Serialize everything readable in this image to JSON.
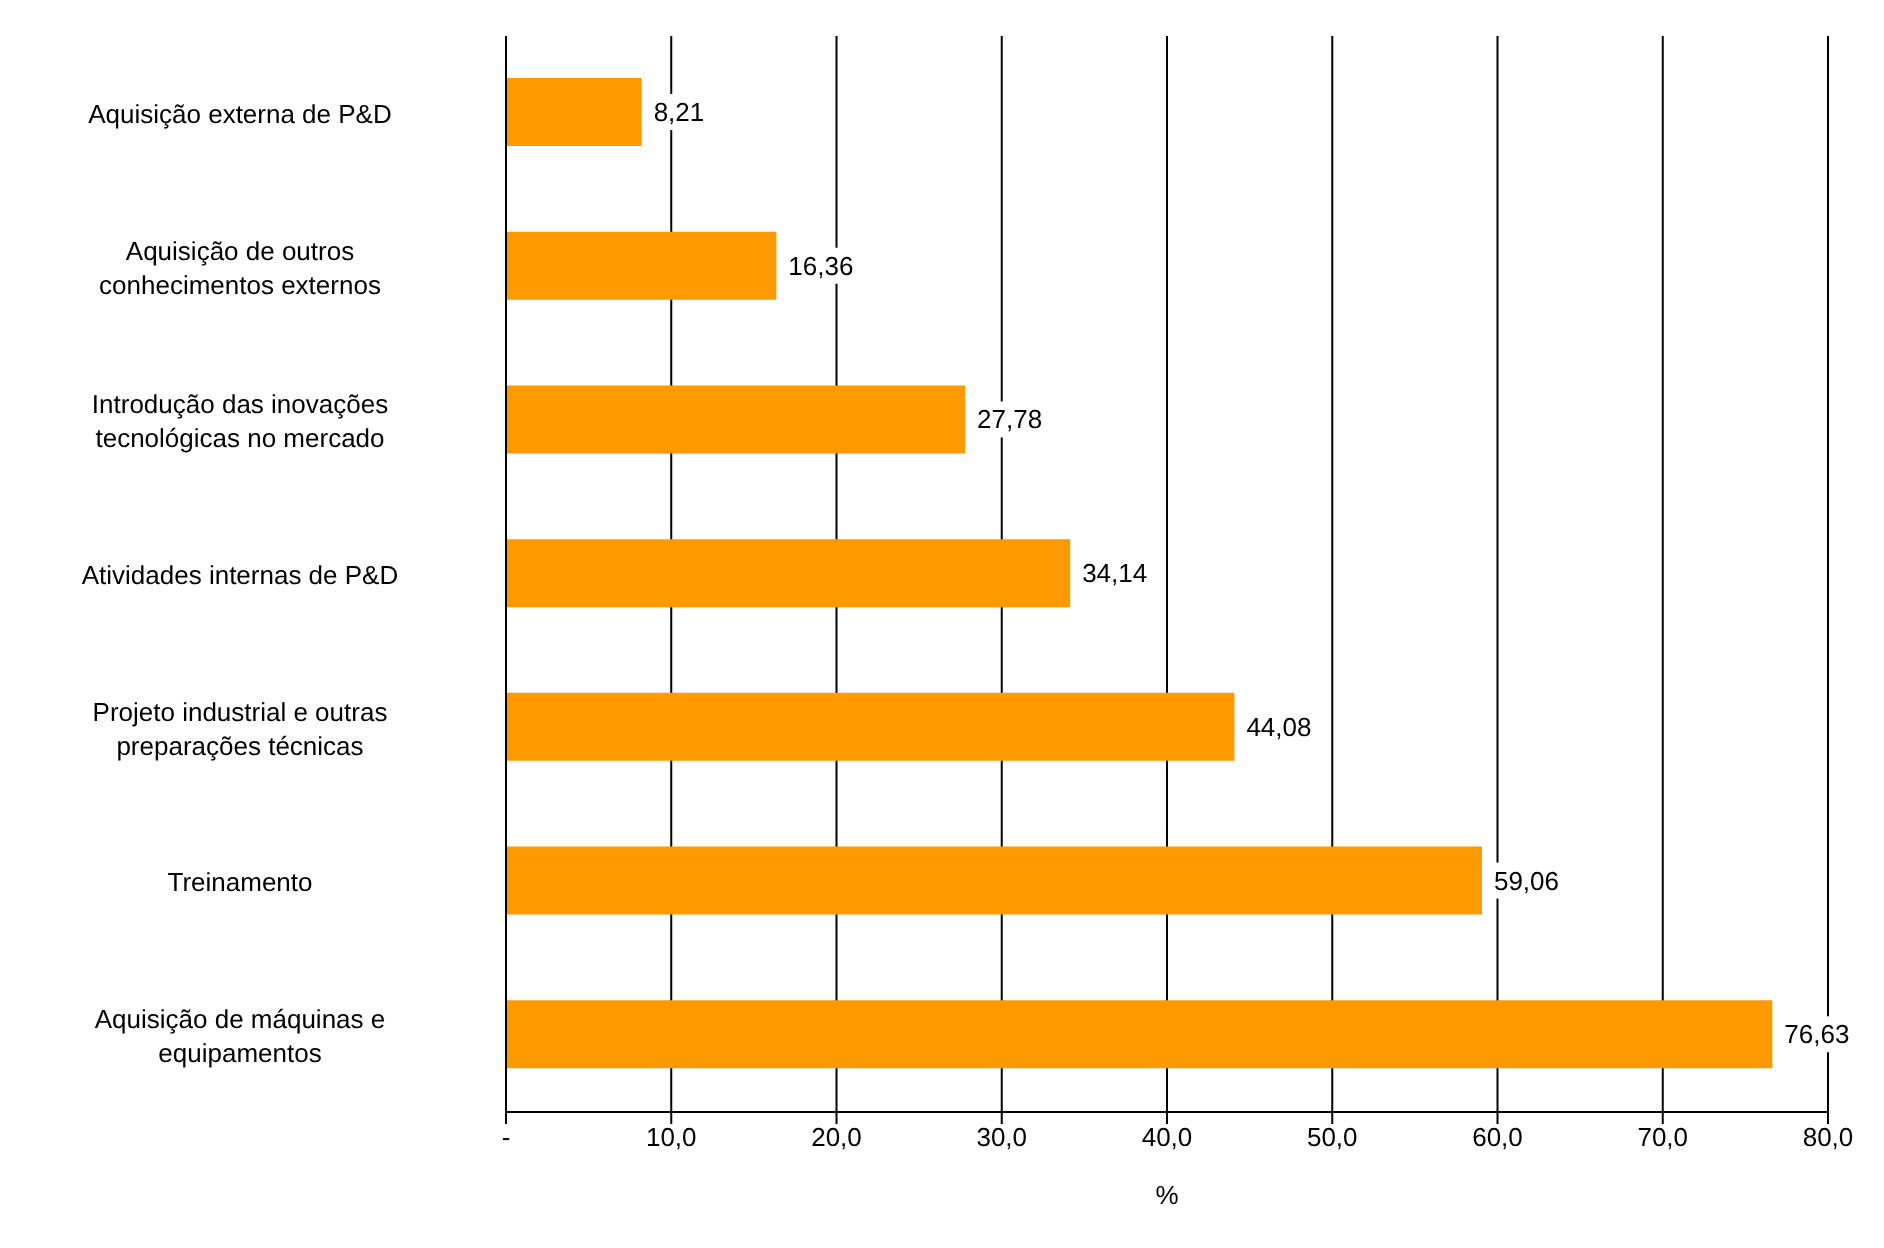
{
  "chart_data": {
    "type": "bar",
    "orientation": "horizontal",
    "xlabel": "%",
    "categories": [
      "Aquisição externa de P&D",
      "Aquisição de outros conhecimentos externos",
      "Introdução das inovações tecnológicas no mercado",
      "Atividades internas de P&D",
      "Projeto industrial e outras preparações técnicas",
      "Treinamento",
      "Aquisição de máquinas e equipamentos"
    ],
    "values": [
      8.21,
      16.36,
      27.78,
      34.14,
      44.08,
      59.06,
      76.63
    ],
    "value_labels": [
      "8,21",
      "16,36",
      "27,78",
      "34,14",
      "44,08",
      "59,06",
      "76,63"
    ],
    "color": "#ff9900",
    "xlim": [
      0,
      80
    ],
    "xticks": [
      {
        "value": 0,
        "label": "-"
      },
      {
        "value": 10,
        "label": "10,0"
      },
      {
        "value": 20,
        "label": "20,0"
      },
      {
        "value": 30,
        "label": "30,0"
      },
      {
        "value": 40,
        "label": "40,0"
      },
      {
        "value": 50,
        "label": "50,0"
      },
      {
        "value": 60,
        "label": "60,0"
      },
      {
        "value": 70,
        "label": "70,0"
      },
      {
        "value": 80,
        "label": "80,0"
      }
    ],
    "grid": "x"
  }
}
